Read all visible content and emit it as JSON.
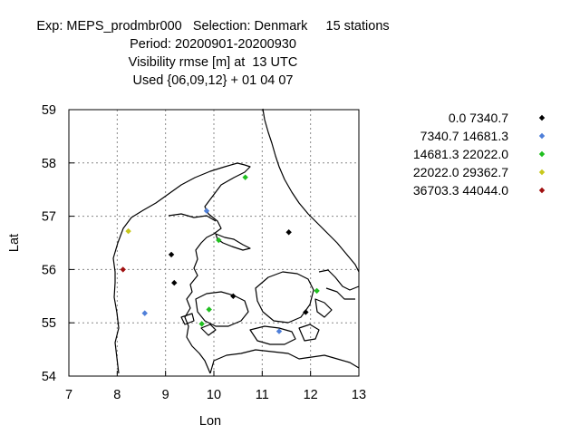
{
  "header": {
    "line1": "Exp: MEPS_prodmbr000   Selection: Denmark     15 stations",
    "line2": "Period: 20200901-20200930",
    "line3": "Visibility rmse [m] at  13 UTC",
    "line4": "Used {06,09,12} + 01 04 07"
  },
  "chart_data": {
    "type": "scatter",
    "xlabel": "Lon",
    "ylabel": "Lat",
    "xlim": [
      7,
      13
    ],
    "ylim": [
      54,
      59
    ],
    "xticks": [
      7,
      8,
      9,
      10,
      11,
      12,
      13
    ],
    "yticks": [
      54,
      55,
      56,
      57,
      58,
      59
    ],
    "grid": true,
    "legend_position": "right",
    "series": [
      {
        "name": "0.0 7340.7",
        "color": "#000000",
        "points": [
          [
            9.12,
            56.28
          ],
          [
            9.18,
            55.75
          ],
          [
            10.4,
            55.5
          ],
          [
            11.55,
            56.7
          ],
          [
            11.9,
            55.2
          ]
        ]
      },
      {
        "name": "7340.7 14681.3",
        "color": "#4f7fd9",
        "points": [
          [
            9.85,
            57.1
          ],
          [
            8.57,
            55.18
          ],
          [
            11.35,
            54.84
          ]
        ]
      },
      {
        "name": "14681.3 22022.0",
        "color": "#1fbf1f",
        "points": [
          [
            10.65,
            57.73
          ],
          [
            10.1,
            56.55
          ],
          [
            9.9,
            55.25
          ],
          [
            9.75,
            54.98
          ],
          [
            12.13,
            55.6
          ]
        ]
      },
      {
        "name": "22022.0 29362.7",
        "color": "#c8c81c",
        "points": [
          [
            8.23,
            56.72
          ]
        ]
      },
      {
        "name": "36703.3 44044.0",
        "color": "#a01010",
        "points": [
          [
            8.12,
            56.0
          ]
        ]
      }
    ]
  }
}
